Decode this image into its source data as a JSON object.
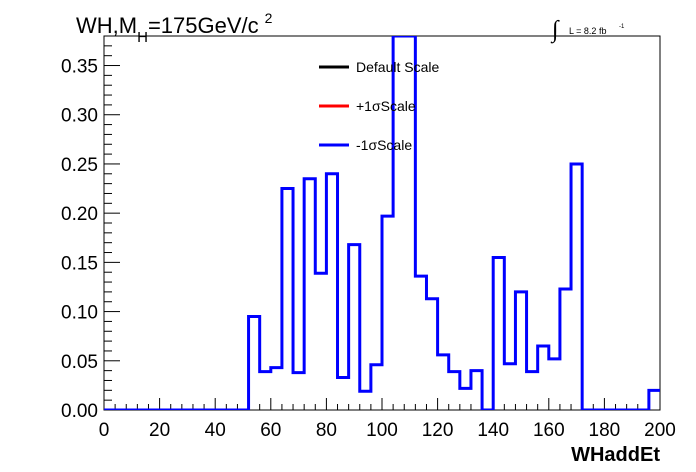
{
  "chart_data": {
    "type": "line",
    "title": {
      "main": "WH,M",
      "subscript": "H",
      "rest": "=175GeV/c",
      "superscript": "2"
    },
    "luminosity": {
      "integral_symbol": "∫",
      "label": "L = 8.2 fb",
      "superscript": "-1"
    },
    "xlabel": "WHaddEt",
    "ylabel": "",
    "xlim": [
      0,
      200
    ],
    "ylim": [
      0,
      0.38
    ],
    "x_ticks": [
      0,
      20,
      40,
      60,
      80,
      100,
      120,
      140,
      160,
      180,
      200
    ],
    "y_ticks": [
      0.0,
      0.05,
      0.1,
      0.15,
      0.2,
      0.25,
      0.3,
      0.35
    ],
    "x_tick_labels": [
      "0",
      "20",
      "40",
      "60",
      "80",
      "100",
      "120",
      "140",
      "160",
      "180",
      "200"
    ],
    "y_tick_labels": [
      "0.00",
      "0.05",
      "0.10",
      "0.15",
      "0.20",
      "0.25",
      "0.30",
      "0.35"
    ],
    "bin_width": 4,
    "bin_edges_start": 0,
    "legend": {
      "position": "top-center",
      "entries": [
        {
          "label": "Default Scale",
          "color": "#000000"
        },
        {
          "label": "+1σScale",
          "color": "#ff0000"
        },
        {
          "label": "-1σScale",
          "color": "#0000ff"
        }
      ]
    },
    "series": [
      {
        "name": "-1σScale",
        "color": "#0000ff",
        "values": [
          0,
          0,
          0,
          0,
          0,
          0,
          0,
          0,
          0,
          0,
          0,
          0,
          0,
          0.095,
          0.039,
          0.043,
          0.225,
          0.038,
          0.235,
          0.139,
          0.24,
          0.033,
          0.168,
          0.019,
          0.046,
          0.197,
          0.38,
          0.38,
          0.136,
          0.113,
          0.056,
          0.039,
          0.022,
          0.04,
          0.0,
          0.155,
          0.047,
          0.12,
          0.039,
          0.065,
          0.052,
          0.123,
          0.25,
          0,
          0,
          0,
          0,
          0,
          0,
          0.02
        ]
      }
    ]
  }
}
